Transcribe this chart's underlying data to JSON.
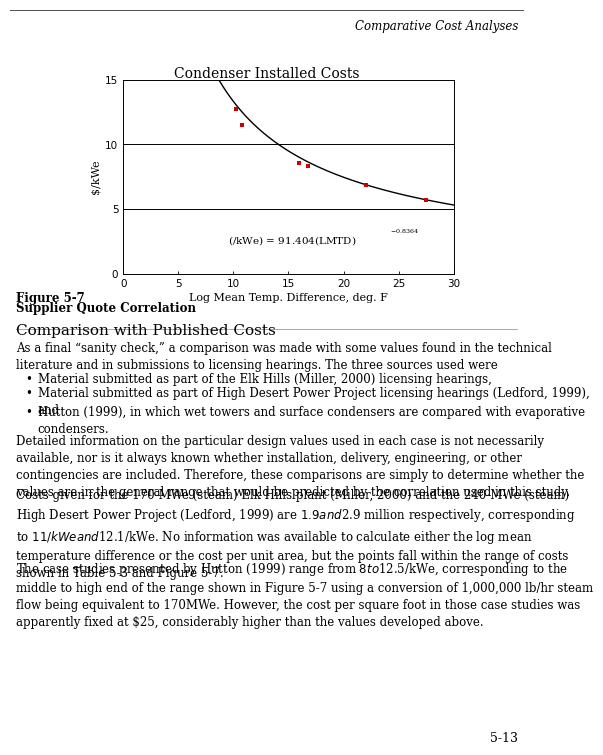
{
  "chart_title": "Condenser Installed Costs",
  "xlabel": "Log Mean Temp. Difference, deg. F",
  "ylabel": "$/kWe",
  "xlim": [
    0,
    30
  ],
  "ylim": [
    0,
    15
  ],
  "xticks": [
    0,
    5,
    10,
    15,
    20,
    25,
    30
  ],
  "yticks": [
    0,
    5,
    10,
    15
  ],
  "data_points_x": [
    10.2,
    10.8,
    16.0,
    16.8,
    22.0,
    27.5
  ],
  "data_points_y": [
    12.7,
    11.5,
    8.6,
    8.3,
    6.9,
    5.7
  ],
  "curve_coeff": 91.404,
  "curve_exp": -0.8364,
  "point_color": "#cc0000",
  "line_color": "#000000",
  "hline_y1": 5,
  "hline_y2": 10,
  "header_text": "Comparative Cost Analyses",
  "figure_caption_line1": "Figure 5-7",
  "figure_caption_line2": "Supplier Quote Correlation",
  "section_header": "Comparison with Published Costs",
  "para1": "As a final “sanity check,” a comparison was made with some values found in the technical\nliterature and in submissions to licensing hearings. The three sources used were",
  "bullet1": "Material submitted as part of the Elk Hills (Miller, 2000) licensing hearings,",
  "bullet2": "Material submitted as part of High Desert Power Project licensing hearings (Ledford, 1999),\nand",
  "bullet3": "Hutton (1999), in which wet towers and surface condensers are compared with evaporative\ncondensers.",
  "para2": "Detailed information on the particular design values used in each case is not necessarily\navailable, nor is it always known whether installation, delivery, engineering, or other\ncontingencies are included. Therefore, these comparisons are simply to determine whether the\nvalues are in the general range that would be predicted by the correlation used in this study.",
  "para3": "Costs given for the 170-MWe (steam) Elk Hills plant (Miller, 2000) and the 240-MWe (steam)\nHigh Desert Power Project (Ledford, 1999) are $1.9 and $2.9 million respectively, corresponding\nto $11/kWe and $12.1/kWe. No information was available to calculate either the log mean\ntemperature difference or the cost per unit area, but the points fall within the range of costs\nshown in Table 5-3 and Figure 5-7.",
  "para4": "The case studies presented by Hutton (1999) range from $8 to $12.5/kWe, corresponding to the\nmiddle to high end of the range shown in Figure 5-7 using a conversion of 1,000,000 lb/hr steam\nflow being equivalent to 170MWe. However, the cost per square foot in those case studies was\napparently fixed at $25, considerably higher than the values developed above.",
  "page_number": "5-13",
  "background_color": "#ffffff"
}
